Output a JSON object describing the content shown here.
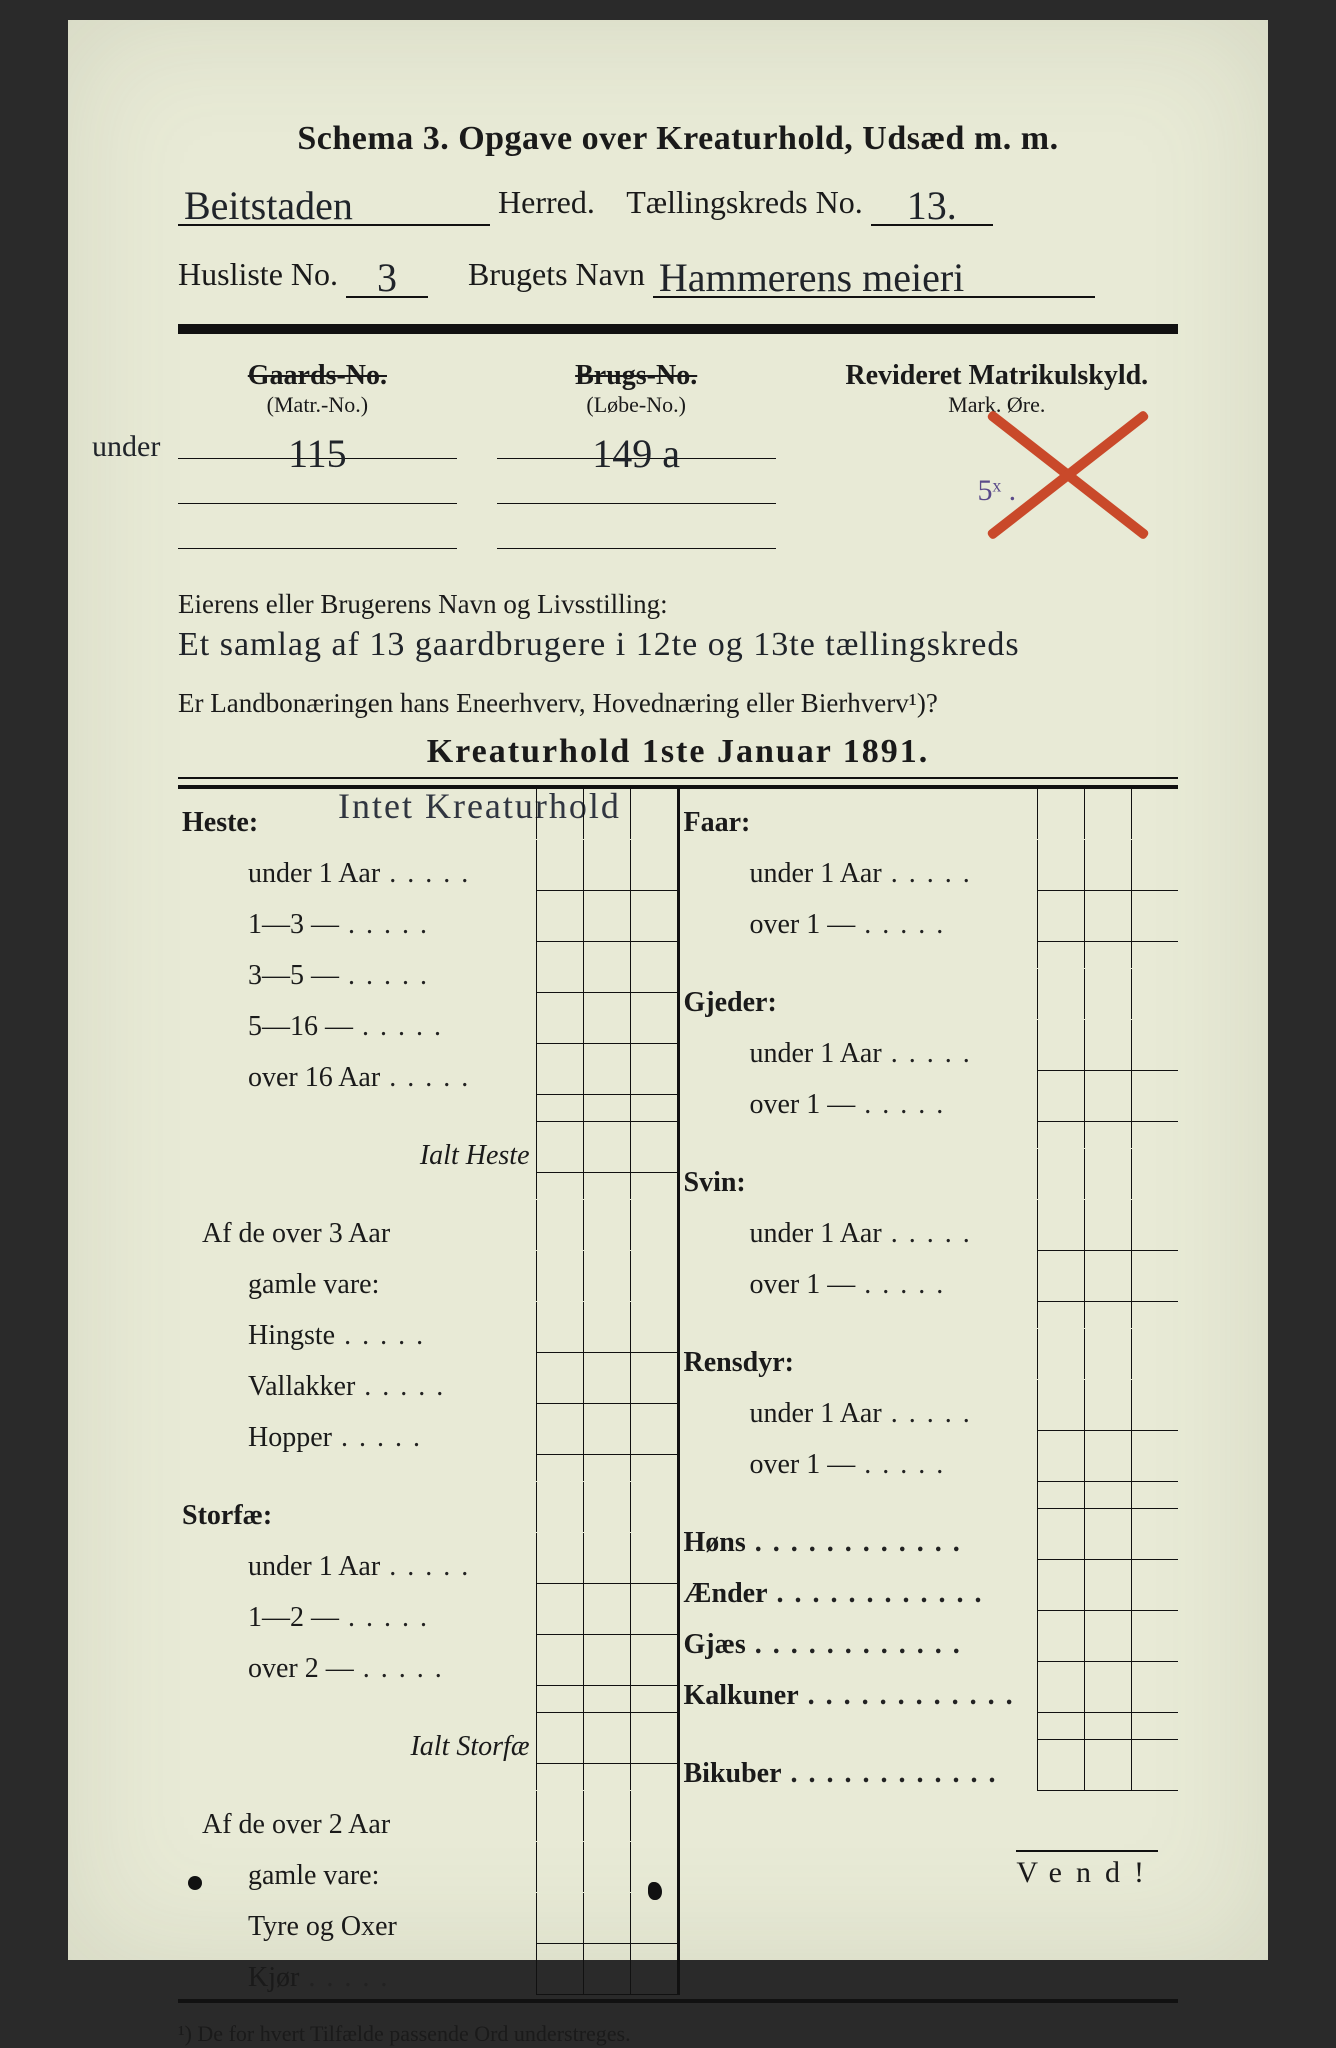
{
  "colors": {
    "paper": "#e8ead6",
    "ink": "#1a1a1a",
    "handwriting": "#20242a",
    "red_crayon": "#c9492a",
    "background": "#2a2a2a"
  },
  "title": "Schema 3.  Opgave over Kreaturhold, Udsæd m. m.",
  "line1": {
    "herred_hand": "Beitstaden",
    "herred_label": "Herred.",
    "kreds_label": "Tællingskreds No.",
    "kreds_hand": "13."
  },
  "line2": {
    "husliste_label": "Husliste No.",
    "husliste_hand": "3",
    "brug_label": "Brugets Navn",
    "brug_hand": "Hammerens meieri"
  },
  "header": {
    "gaards": {
      "strike": "Gaards-No.",
      "sub": "(Matr.-No.)",
      "hand_pre": "under",
      "hand": "115"
    },
    "brugs": {
      "strike": "Brugs-No.",
      "sub": "(Løbe-No.)",
      "hand": "149 a"
    },
    "rev": {
      "title": "Revideret Matrikulskyld.",
      "sub": "Mark.    Øre.",
      "hand": "5ˣ ."
    }
  },
  "owner": {
    "label": "Eierens eller Brugerens Navn og Livsstilling:",
    "hand": "Et samlag af 13 gaardbrugere i 12te og 13te tællingskreds"
  },
  "question": "Er Landbonæringen hans Eneerhverv, Hovednæring eller Bierhverv¹)?",
  "section_title": "Kreaturhold 1ste Januar 1891.",
  "hand_over_table": "Intet   Kreaturhold",
  "left_rows": [
    {
      "t": "Heste:",
      "cls": "bold",
      "nocell": true
    },
    {
      "t": "under 1 Aar",
      "cls": "sub dots"
    },
    {
      "t": "1—3   —",
      "cls": "sub dots"
    },
    {
      "t": "3—5   —",
      "cls": "sub dots"
    },
    {
      "t": "5—16  —",
      "cls": "sub dots"
    },
    {
      "t": "over 16 Aar",
      "cls": "sub dots"
    },
    {
      "t": "",
      "cls": "gap",
      "nocell": false
    },
    {
      "t": "Ialt Heste",
      "cls": "ital"
    },
    {
      "t": "",
      "cls": "gap",
      "nocell": true
    },
    {
      "t": "Af de over 3 Aar",
      "cls": "",
      "nocell": true
    },
    {
      "t": "gamle vare:",
      "cls": "sub",
      "nocell": true
    },
    {
      "t": "Hingste",
      "cls": "sub dots"
    },
    {
      "t": "Vallakker",
      "cls": "sub dots"
    },
    {
      "t": "Hopper",
      "cls": "sub dots"
    },
    {
      "t": "",
      "cls": "gap",
      "nocell": true
    },
    {
      "t": "Storfæ:",
      "cls": "bold",
      "nocell": true
    },
    {
      "t": "under 1 Aar",
      "cls": "sub dots"
    },
    {
      "t": "1—2   —",
      "cls": "sub dots"
    },
    {
      "t": "over 2   —",
      "cls": "sub dots"
    },
    {
      "t": "",
      "cls": "gap",
      "nocell": false
    },
    {
      "t": "Ialt Storfæ",
      "cls": "ital"
    },
    {
      "t": "",
      "cls": "gap",
      "nocell": true
    },
    {
      "t": "Af de over 2 Aar",
      "cls": "",
      "nocell": true
    },
    {
      "t": "gamle vare:",
      "cls": "sub",
      "nocell": true
    },
    {
      "t": "Tyre og Oxer",
      "cls": "sub"
    },
    {
      "t": "Kjør",
      "cls": "sub dots"
    }
  ],
  "right_rows": [
    {
      "t": "Faar:",
      "cls": "bold",
      "nocell": true
    },
    {
      "t": "under 1 Aar",
      "cls": "sub dots"
    },
    {
      "t": "over 1   —",
      "cls": "sub dots"
    },
    {
      "t": "",
      "cls": "gap",
      "nocell": true
    },
    {
      "t": "Gjeder:",
      "cls": "bold",
      "nocell": true
    },
    {
      "t": "under 1 Aar",
      "cls": "sub dots"
    },
    {
      "t": "over 1   —",
      "cls": "sub dots"
    },
    {
      "t": "",
      "cls": "gap",
      "nocell": true
    },
    {
      "t": "Svin:",
      "cls": "bold",
      "nocell": true
    },
    {
      "t": "under 1 Aar",
      "cls": "sub dots"
    },
    {
      "t": "over 1   —",
      "cls": "sub dots"
    },
    {
      "t": "",
      "cls": "gap",
      "nocell": true
    },
    {
      "t": "Rensdyr:",
      "cls": "bold",
      "nocell": true
    },
    {
      "t": "under 1 Aar",
      "cls": "sub dots"
    },
    {
      "t": "over 1   —",
      "cls": "sub dots"
    },
    {
      "t": "",
      "cls": "gap",
      "nocell": false
    },
    {
      "t": "Høns",
      "cls": "bold dotslong"
    },
    {
      "t": "Ænder",
      "cls": "bold dotslong"
    },
    {
      "t": "Gjæs",
      "cls": "bold dotslong"
    },
    {
      "t": "Kalkuner",
      "cls": "bold dotslong"
    },
    {
      "t": "",
      "cls": "gap",
      "nocell": false
    },
    {
      "t": "Bikuber",
      "cls": "bold dotslong"
    }
  ],
  "footnote": "¹) De for hvert Tilfælde passende Ord understreges.",
  "vend": "Vend!"
}
